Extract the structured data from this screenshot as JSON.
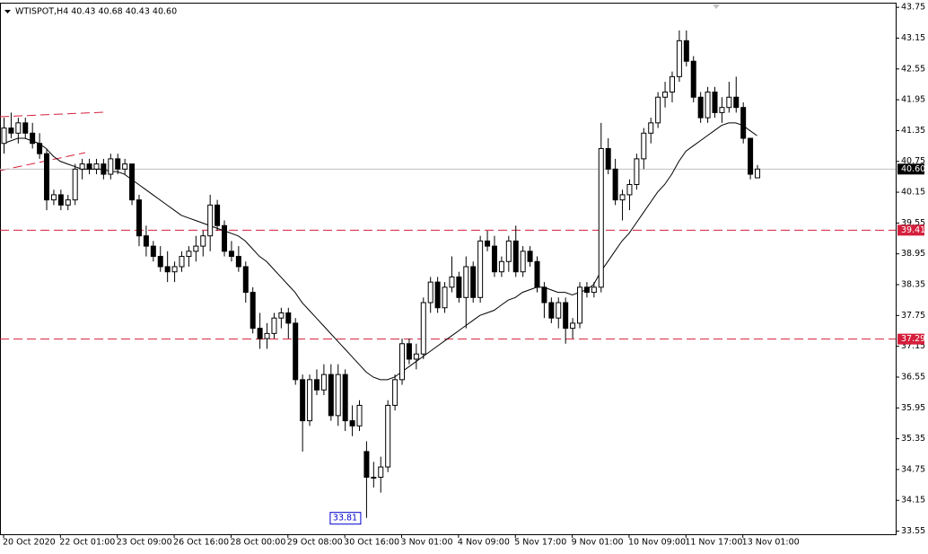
{
  "chart_data": {
    "type": "candlestick",
    "title": "WTISPOT,H4  40.43 40.68 40.43 40.60",
    "categories": [
      "20 Oct 2020",
      null,
      null,
      null,
      null,
      null,
      null,
      null,
      "22 Oct 01:00",
      null,
      null,
      null,
      null,
      null,
      null,
      null,
      "23 Oct 09:00",
      null,
      null,
      null,
      null,
      null,
      null,
      null,
      "26 Oct 16:00",
      null,
      null,
      null,
      null,
      null,
      null,
      null,
      "28 Oct 00:00",
      null,
      null,
      null,
      null,
      null,
      null,
      null,
      "29 Oct 08:00",
      null,
      null,
      null,
      null,
      null,
      null,
      null,
      "30 Oct 16:00",
      null,
      null,
      null,
      null,
      null,
      null,
      null,
      "3 Nov 01:00",
      null,
      null,
      null,
      null,
      null,
      null,
      null,
      "4 Nov 09:00",
      null,
      null,
      null,
      null,
      null,
      null,
      null,
      "5 Nov 17:00",
      null,
      null,
      null,
      null,
      null,
      null,
      null,
      "9 Nov 01:00",
      null,
      null,
      null,
      null,
      null,
      null,
      null,
      "10 Nov 09:00",
      null,
      null,
      null,
      null,
      null,
      null,
      null,
      "11 Nov 17:00",
      null,
      null,
      null,
      null,
      null,
      null,
      null,
      "13 Nov 01:00",
      null,
      null
    ],
    "open": [
      41.1,
      41.4,
      41.3,
      41.5,
      41.3,
      41.1,
      40.9,
      40.0,
      40.1,
      39.9,
      40.0,
      40.6,
      40.7,
      40.6,
      40.7,
      40.5,
      40.8,
      40.6,
      40.7,
      40.0,
      39.3,
      39.1,
      38.9,
      38.7,
      38.6,
      38.7,
      38.9,
      39.0,
      39.1,
      39.3,
      39.9,
      39.5,
      39.0,
      38.9,
      38.7,
      38.2,
      37.5,
      37.3,
      37.4,
      37.7,
      37.8,
      37.6,
      36.5,
      35.7,
      36.5,
      36.3,
      36.6,
      35.8,
      36.6,
      35.7,
      35.6,
      35.1,
      34.6,
      34.6,
      34.8,
      36.0,
      36.5,
      37.2,
      36.9,
      37.0,
      38.0,
      38.4,
      37.9,
      38.3,
      38.5,
      38.1,
      38.7,
      38.1,
      39.2,
      39.1,
      38.6,
      38.8,
      39.2,
      38.6,
      39.0,
      38.8,
      38.3,
      38.0,
      37.7,
      38.0,
      37.5,
      37.6,
      38.3,
      38.2,
      38.3,
      41.0,
      40.6,
      40.0,
      40.1,
      40.3,
      40.8,
      41.3,
      41.5,
      42.0,
      42.1,
      42.4,
      43.1,
      42.7,
      42.0,
      41.6,
      42.1,
      41.7,
      41.8,
      42.0,
      41.8,
      41.2,
      40.43
    ],
    "high": [
      41.6,
      41.7,
      41.6,
      41.6,
      41.5,
      41.3,
      41.0,
      40.2,
      40.2,
      40.1,
      40.7,
      40.8,
      40.8,
      40.8,
      40.8,
      40.9,
      40.9,
      40.8,
      40.7,
      40.1,
      39.5,
      39.2,
      39.1,
      39.0,
      38.8,
      39.0,
      39.1,
      39.3,
      39.4,
      40.1,
      40.0,
      39.6,
      39.2,
      39.1,
      38.8,
      38.3,
      37.8,
      37.6,
      37.8,
      37.9,
      37.9,
      37.7,
      36.6,
      36.6,
      36.7,
      36.8,
      36.8,
      36.8,
      36.7,
      36.0,
      36.1,
      35.3,
      34.9,
      35.0,
      36.1,
      36.6,
      37.3,
      37.3,
      37.2,
      38.1,
      38.5,
      38.5,
      38.4,
      38.9,
      38.6,
      38.9,
      38.8,
      39.3,
      39.4,
      39.3,
      38.9,
      39.3,
      39.5,
      39.1,
      39.1,
      38.9,
      38.4,
      38.1,
      38.1,
      38.1,
      37.7,
      38.4,
      38.4,
      38.4,
      41.5,
      41.2,
      40.8,
      40.2,
      40.4,
      40.9,
      41.4,
      41.6,
      42.1,
      42.3,
      42.5,
      43.3,
      43.3,
      42.8,
      42.1,
      42.2,
      42.2,
      42.0,
      42.3,
      42.4,
      41.9,
      41.2,
      40.68
    ],
    "low": [
      40.9,
      41.2,
      41.1,
      41.2,
      41.0,
      40.8,
      39.8,
      39.9,
      39.8,
      39.8,
      39.9,
      40.4,
      40.5,
      40.5,
      40.4,
      40.4,
      40.5,
      40.5,
      39.9,
      39.1,
      38.9,
      38.8,
      38.6,
      38.4,
      38.4,
      38.6,
      38.7,
      38.8,
      38.9,
      39.0,
      39.4,
      38.9,
      38.8,
      38.6,
      38.0,
      37.4,
      37.1,
      37.1,
      37.3,
      37.5,
      37.3,
      36.4,
      35.1,
      35.6,
      36.2,
      36.2,
      35.7,
      35.6,
      35.5,
      35.4,
      35.5,
      33.81,
      34.4,
      34.3,
      34.7,
      35.9,
      36.4,
      36.8,
      36.7,
      36.9,
      37.8,
      37.8,
      37.8,
      38.2,
      38.0,
      37.5,
      38.0,
      38.0,
      39.0,
      38.5,
      38.5,
      38.6,
      38.5,
      38.5,
      38.7,
      38.2,
      37.7,
      37.6,
      37.5,
      37.2,
      37.3,
      37.5,
      38.1,
      38.1,
      38.2,
      40.5,
      39.9,
      39.6,
      39.8,
      40.2,
      40.6,
      41.1,
      41.4,
      41.8,
      41.9,
      42.3,
      42.6,
      41.9,
      41.5,
      41.5,
      41.6,
      41.5,
      41.7,
      41.7,
      41.1,
      40.4,
      40.43
    ],
    "close": [
      41.4,
      41.3,
      41.5,
      41.3,
      41.1,
      40.9,
      40.0,
      40.1,
      39.9,
      40.0,
      40.6,
      40.7,
      40.6,
      40.7,
      40.5,
      40.8,
      40.6,
      40.7,
      40.0,
      39.3,
      39.1,
      38.9,
      38.7,
      38.6,
      38.7,
      38.9,
      39.0,
      39.1,
      39.3,
      39.9,
      39.5,
      39.0,
      38.9,
      38.7,
      38.2,
      37.5,
      37.3,
      37.4,
      37.7,
      37.8,
      37.6,
      36.5,
      35.7,
      36.5,
      36.3,
      36.6,
      35.8,
      36.6,
      35.7,
      35.6,
      36.0,
      34.6,
      34.6,
      34.8,
      36.0,
      36.5,
      37.2,
      36.9,
      37.0,
      38.0,
      38.4,
      37.9,
      38.3,
      38.5,
      38.1,
      38.7,
      38.1,
      39.2,
      39.1,
      38.6,
      38.8,
      39.2,
      38.6,
      39.0,
      38.8,
      38.3,
      38.0,
      37.7,
      38.0,
      37.5,
      37.6,
      38.3,
      38.2,
      38.3,
      41.0,
      40.6,
      40.0,
      40.1,
      40.3,
      40.8,
      41.3,
      41.5,
      42.0,
      42.1,
      42.4,
      43.1,
      42.7,
      42.0,
      41.6,
      42.1,
      41.7,
      41.8,
      42.0,
      41.8,
      41.2,
      40.5,
      40.6
    ],
    "ma": [
      41.1,
      41.15,
      41.2,
      41.2,
      41.15,
      41.1,
      41.0,
      40.85,
      40.75,
      40.7,
      40.65,
      40.6,
      40.6,
      40.6,
      40.6,
      40.55,
      40.55,
      40.5,
      40.4,
      40.3,
      40.2,
      40.1,
      40.0,
      39.9,
      39.8,
      39.7,
      39.65,
      39.6,
      39.55,
      39.5,
      39.45,
      39.4,
      39.35,
      39.3,
      39.2,
      39.05,
      38.9,
      38.8,
      38.65,
      38.5,
      38.35,
      38.2,
      38.0,
      37.85,
      37.7,
      37.55,
      37.4,
      37.25,
      37.1,
      36.95,
      36.8,
      36.65,
      36.55,
      36.5,
      36.5,
      36.55,
      36.65,
      36.75,
      36.85,
      36.95,
      37.05,
      37.15,
      37.25,
      37.35,
      37.45,
      37.55,
      37.65,
      37.75,
      37.8,
      37.85,
      37.95,
      38.05,
      38.1,
      38.2,
      38.25,
      38.3,
      38.3,
      38.25,
      38.2,
      38.2,
      38.15,
      38.2,
      38.25,
      38.35,
      38.6,
      38.8,
      39.0,
      39.2,
      39.35,
      39.55,
      39.75,
      39.95,
      40.15,
      40.3,
      40.5,
      40.75,
      40.95,
      41.05,
      41.15,
      41.25,
      41.35,
      41.45,
      41.5,
      41.5,
      41.45,
      41.35,
      41.25
    ],
    "up_color": "#ffffff",
    "down_color": "#000000",
    "line_color": "#000000",
    "level_color": "#d41f3c",
    "ylim": [
      33.49,
      43.84
    ],
    "yticks": [
      43.75,
      43.15,
      42.55,
      41.95,
      41.35,
      40.75,
      40.15,
      39.55,
      38.95,
      38.35,
      37.75,
      37.15,
      36.55,
      35.95,
      35.35,
      34.75,
      34.15,
      33.55
    ],
    "levels": [
      39.41,
      37.29
    ],
    "current_price": {
      "value": 40.6,
      "label": "40.60"
    },
    "low_marker": 33.81
  }
}
